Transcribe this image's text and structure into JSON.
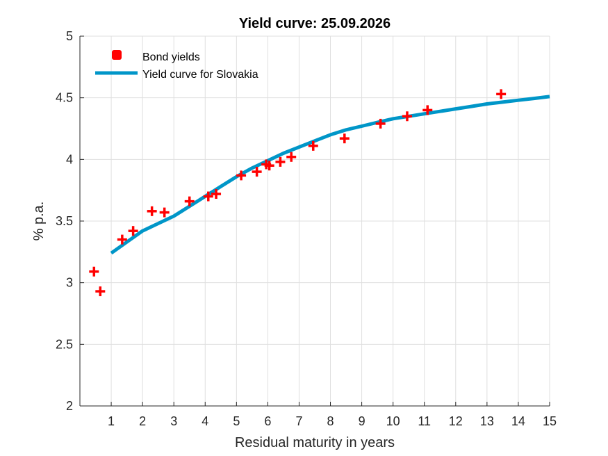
{
  "chart_data": {
    "type": "scatter",
    "title": "Yield curve: 25.09.2026",
    "xlabel": "Residual maturity in years",
    "ylabel": "% p.a.",
    "xlim": [
      0,
      15
    ],
    "ylim": [
      2,
      5
    ],
    "xticks": [
      1,
      2,
      3,
      4,
      5,
      6,
      7,
      8,
      9,
      10,
      11,
      12,
      13,
      14,
      15
    ],
    "yticks": [
      2,
      2.5,
      3,
      3.5,
      4,
      4.5,
      5
    ],
    "grid": true,
    "legend_position": "top-left",
    "series": [
      {
        "name": "Bond yields",
        "type": "scatter",
        "marker": "plus",
        "color": "#ff0000",
        "x": [
          0.45,
          0.65,
          1.35,
          1.7,
          2.3,
          2.7,
          3.5,
          4.1,
          4.35,
          5.15,
          5.65,
          5.95,
          6.05,
          6.4,
          6.75,
          7.45,
          8.45,
          9.6,
          10.45,
          11.1,
          13.45
        ],
        "y": [
          3.09,
          2.93,
          3.35,
          3.42,
          3.58,
          3.57,
          3.66,
          3.7,
          3.72,
          3.87,
          3.9,
          3.96,
          3.95,
          3.98,
          4.02,
          4.11,
          4.17,
          4.29,
          4.35,
          4.4,
          4.53
        ]
      },
      {
        "name": "Yield curve for Slovakia",
        "type": "line",
        "color": "#0096c8",
        "x": [
          1,
          1.5,
          2,
          2.5,
          3,
          3.5,
          4,
          4.5,
          5,
          5.5,
          6,
          6.5,
          7,
          7.5,
          8,
          8.5,
          9,
          9.5,
          10,
          10.5,
          11,
          11.5,
          12,
          12.5,
          13,
          13.5,
          14,
          14.5,
          15
        ],
        "y": [
          3.24,
          3.33,
          3.42,
          3.48,
          3.54,
          3.62,
          3.7,
          3.78,
          3.86,
          3.93,
          3.99,
          4.05,
          4.1,
          4.15,
          4.2,
          4.24,
          4.27,
          4.3,
          4.33,
          4.35,
          4.37,
          4.39,
          4.41,
          4.43,
          4.45,
          4.465,
          4.48,
          4.495,
          4.51
        ]
      }
    ]
  }
}
